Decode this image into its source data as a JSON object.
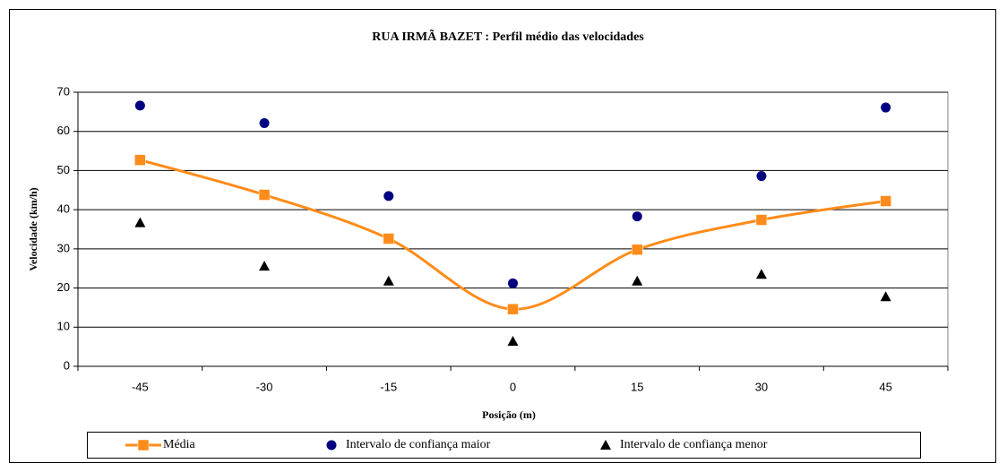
{
  "chart_data": {
    "type": "line",
    "title": "RUA IRMÃ BAZET : Perfil médio das velocidades",
    "x_label": "Posição (m)",
    "y_label": "Velocidade (km/h)",
    "categories": [
      -45,
      -30,
      -15,
      0,
      15,
      30,
      45
    ],
    "ylim": [
      0,
      70
    ],
    "yticks": [
      0,
      10,
      20,
      30,
      40,
      50,
      60,
      70
    ],
    "grid": true,
    "legend": "bottom",
    "series": [
      {
        "name": "Média",
        "color": "#ff8c1a",
        "marker": "square",
        "line": true,
        "smooth": true,
        "values": [
          52.7,
          43.8,
          32.6,
          14.6,
          29.8,
          37.4,
          42.2
        ]
      },
      {
        "name": "Intervalo de confiança maior",
        "color": "#000080",
        "marker": "circle",
        "line": false,
        "values": [
          66.6,
          62.1,
          43.5,
          21.2,
          38.3,
          48.6,
          66.1
        ]
      },
      {
        "name": "Intervalo de confiança menor",
        "color": "#000000",
        "marker": "triangle",
        "line": false,
        "values": [
          36.7,
          25.6,
          21.8,
          6.4,
          21.8,
          23.5,
          17.8
        ]
      }
    ]
  }
}
